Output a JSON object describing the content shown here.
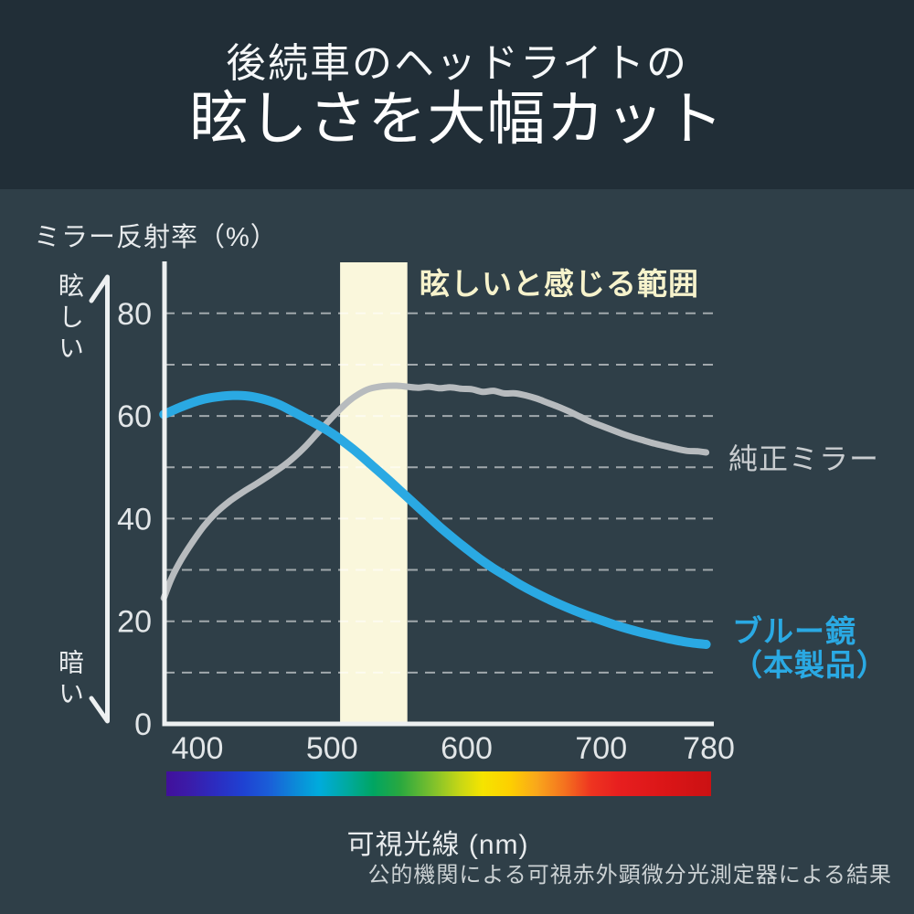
{
  "header": {
    "title_line1": "後続車のヘッドライトの",
    "title_line2": "眩しさを大幅カット",
    "background": "#212e37"
  },
  "chart": {
    "y_axis_title": "ミラー反射率（%）",
    "bright_label": "眩しい",
    "dark_label": "暗い",
    "band_label": "眩しいと感じる範囲",
    "stock_label": "純正ミラー",
    "blue_label_line1": "ブルー鏡",
    "blue_label_line2": "（本製品）",
    "x_unit_label": "可視光線 (nm)",
    "footnote": "公的機関による可視赤外顕微分光測定器による結果",
    "colors": {
      "background": "#2f3f48",
      "band": "#faf7dc",
      "band_label_text": "#f7f3cc",
      "blue_accent": "#2aa9e3",
      "gray_series": "#b7bbbe",
      "axis": "#edf0f1",
      "grid": "rgba(255,255,255,0.55)",
      "tick_text": "#e2e6e8"
    }
  },
  "chart_data": {
    "type": "line",
    "title": "ミラー反射率（%）",
    "xlabel": "可視光線 (nm)",
    "ylabel": "ミラー反射率（%）",
    "xlim": [
      374,
      785
    ],
    "ylim": [
      0,
      90
    ],
    "x_ticks": [
      400,
      500,
      600,
      700,
      780
    ],
    "y_ticks": [
      0,
      20,
      40,
      60,
      80
    ],
    "gridlines_y": [
      10,
      20,
      30,
      40,
      50,
      60,
      70,
      80
    ],
    "grid_on": true,
    "glare_band_nm": [
      506,
      556
    ],
    "legend_position": "right-of-line-ends",
    "series": [
      {
        "name": "純正ミラー",
        "color": "#b7bbbe",
        "width": 7,
        "points": [
          [
            375,
            24.5
          ],
          [
            381,
            28.5
          ],
          [
            388,
            32
          ],
          [
            396,
            35.3
          ],
          [
            405,
            38.6
          ],
          [
            414,
            41.2
          ],
          [
            424,
            43.4
          ],
          [
            434,
            45.2
          ],
          [
            444,
            46.8
          ],
          [
            454,
            48.5
          ],
          [
            464,
            50.3
          ],
          [
            472,
            52
          ],
          [
            480,
            54
          ],
          [
            488,
            56.3
          ],
          [
            496,
            58.6
          ],
          [
            504,
            60.8
          ],
          [
            512,
            62.8
          ],
          [
            520,
            64.3
          ],
          [
            528,
            65.3
          ],
          [
            538,
            65.8
          ],
          [
            548,
            65.9
          ],
          [
            556,
            65.7
          ],
          [
            564,
            65.5
          ],
          [
            572,
            65.7
          ],
          [
            580,
            65.4
          ],
          [
            588,
            65.6
          ],
          [
            596,
            65.3
          ],
          [
            604,
            65.2
          ],
          [
            612,
            64.7
          ],
          [
            620,
            64.9
          ],
          [
            628,
            64.4
          ],
          [
            636,
            64.4
          ],
          [
            644,
            64
          ],
          [
            652,
            63.4
          ],
          [
            660,
            62.6
          ],
          [
            668,
            61.8
          ],
          [
            676,
            60.9
          ],
          [
            684,
            59.9
          ],
          [
            692,
            58.9
          ],
          [
            700,
            58.1
          ],
          [
            708,
            57.3
          ],
          [
            716,
            56.5
          ],
          [
            724,
            55.8
          ],
          [
            732,
            55.2
          ],
          [
            740,
            54.6
          ],
          [
            748,
            54.1
          ],
          [
            756,
            53.6
          ],
          [
            764,
            53.2
          ],
          [
            772,
            53.1
          ],
          [
            778,
            52.9
          ]
        ]
      },
      {
        "name": "ブルー鏡（本製品）",
        "color": "#2aa9e3",
        "width": 10,
        "points": [
          [
            375,
            60.3
          ],
          [
            390,
            62
          ],
          [
            405,
            63.3
          ],
          [
            420,
            63.9
          ],
          [
            430,
            64
          ],
          [
            440,
            63.8
          ],
          [
            450,
            63.2
          ],
          [
            460,
            62.3
          ],
          [
            470,
            61
          ],
          [
            480,
            59.6
          ],
          [
            490,
            58.2
          ],
          [
            500,
            56.6
          ],
          [
            510,
            54.7
          ],
          [
            520,
            52.6
          ],
          [
            530,
            50.3
          ],
          [
            540,
            48
          ],
          [
            550,
            45.6
          ],
          [
            560,
            43.2
          ],
          [
            570,
            40.8
          ],
          [
            580,
            38.4
          ],
          [
            590,
            36.2
          ],
          [
            600,
            34.1
          ],
          [
            610,
            32.1
          ],
          [
            620,
            30.3
          ],
          [
            630,
            28.7
          ],
          [
            640,
            27.1
          ],
          [
            650,
            25.7
          ],
          [
            660,
            24.4
          ],
          [
            670,
            23.2
          ],
          [
            680,
            22.1
          ],
          [
            690,
            21.1
          ],
          [
            700,
            20.2
          ],
          [
            710,
            19.3
          ],
          [
            720,
            18.5
          ],
          [
            730,
            17.8
          ],
          [
            740,
            17.2
          ],
          [
            750,
            16.6
          ],
          [
            760,
            16.1
          ],
          [
            770,
            15.7
          ],
          [
            778,
            15.5
          ]
        ]
      }
    ]
  }
}
